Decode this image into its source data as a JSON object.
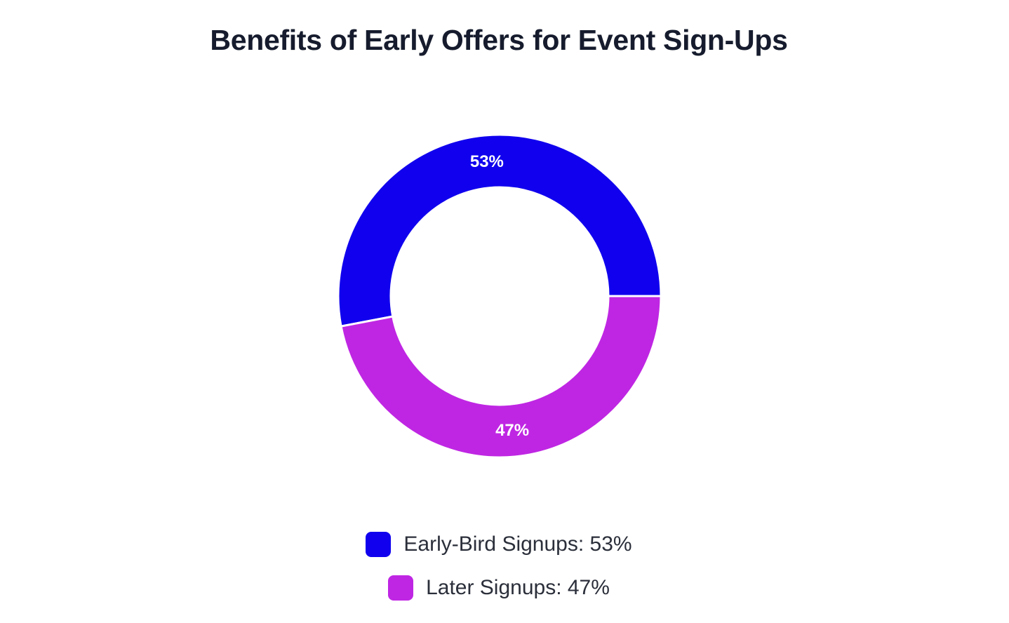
{
  "chart_data": {
    "type": "pie",
    "variant": "donut",
    "title": "Benefits of Early Offers for Event Sign-Ups",
    "series": [
      {
        "name": "Early-Bird Signups",
        "value": 53,
        "label": "53%",
        "legend_text": "Early-Bird Signups: 53%",
        "color": "#1000ee"
      },
      {
        "name": "Later Signups",
        "value": 47,
        "label": "47%",
        "legend_text": "Later Signups: 47%",
        "color": "#bf26e3"
      }
    ],
    "legend_position": "bottom"
  }
}
